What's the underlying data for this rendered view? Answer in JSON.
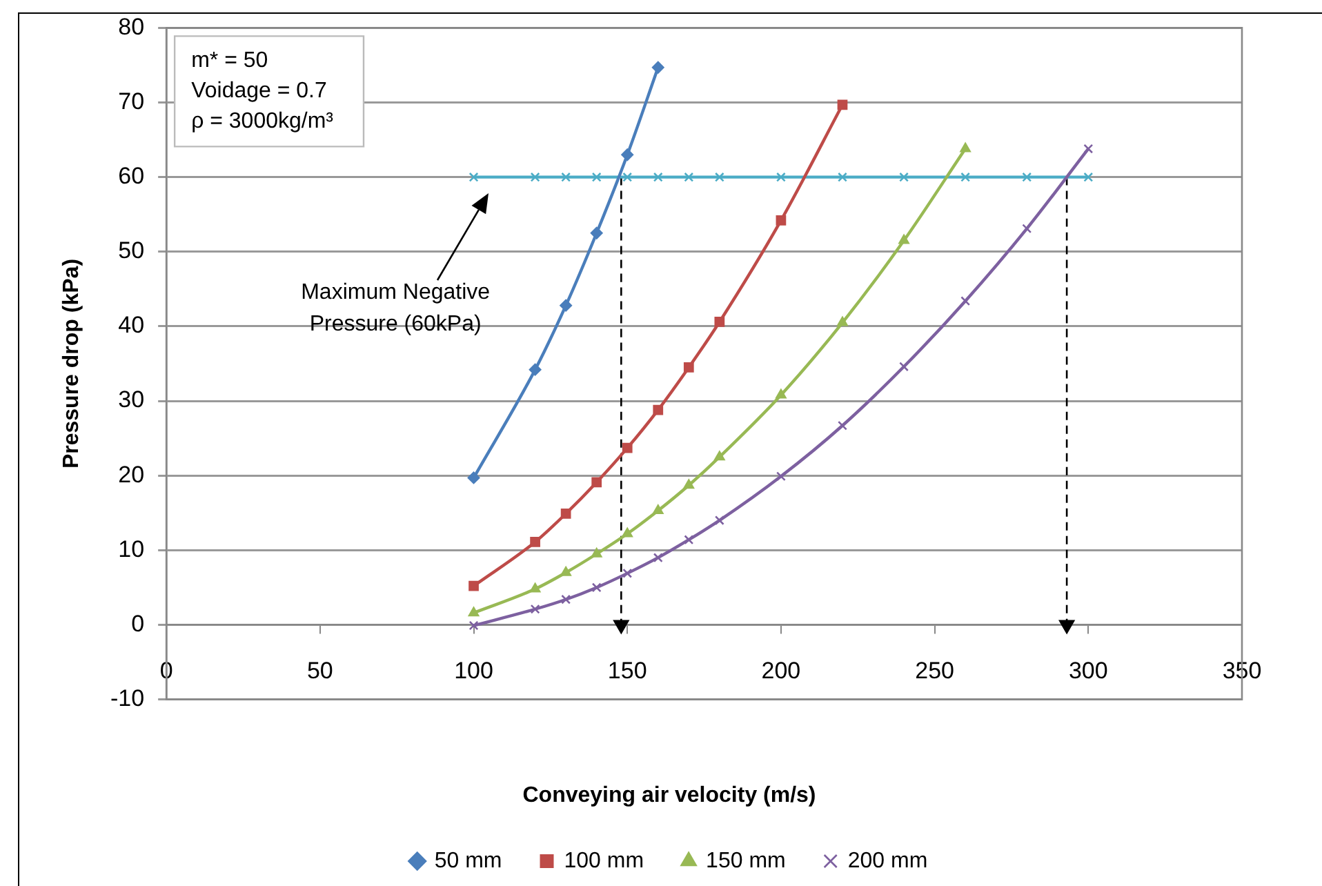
{
  "chart_data": {
    "type": "line",
    "xlabel": "Conveying air velocity (m/s)",
    "ylabel": "Pressure drop (kPa)",
    "xlim": [
      0,
      350
    ],
    "xticks": [
      0,
      50,
      100,
      150,
      200,
      250,
      300,
      350
    ],
    "ylim": [
      -10,
      80
    ],
    "yticks": [
      -10,
      0,
      10,
      20,
      30,
      40,
      50,
      60,
      70,
      80
    ],
    "grid": "y",
    "legend": "bottom",
    "annotations": [
      "m* = 50",
      "Voidage = 0.7",
      "ρ = 3000kg/m³",
      "Maximum Negative\nPressure (60kPa)"
    ],
    "series": [
      {
        "name": "50 mm",
        "color": "#4a7ebb",
        "marker": "diamond",
        "x": [
          100,
          120,
          130,
          140,
          150,
          160
        ],
        "values": [
          19.7,
          34.2,
          42.8,
          52.5,
          63,
          74.7
        ]
      },
      {
        "name": "100 mm",
        "color": "#be4b48",
        "marker": "square",
        "x": [
          100,
          120,
          130,
          140,
          150,
          160,
          170,
          180,
          200,
          220
        ],
        "values": [
          5.2,
          11.1,
          14.9,
          19.1,
          23.7,
          28.8,
          34.5,
          40.6,
          54.2,
          69.7
        ]
      },
      {
        "name": "150 mm",
        "color": "#98b954",
        "marker": "triangle",
        "x": [
          100,
          120,
          130,
          140,
          150,
          160,
          170,
          180,
          200,
          220,
          240,
          260
        ],
        "values": [
          1.6,
          4.8,
          7.0,
          9.5,
          12.2,
          15.3,
          18.7,
          22.5,
          30.8,
          40.5,
          51.5,
          63.8
        ]
      },
      {
        "name": "200 mm",
        "color": "#7d60a0",
        "marker": "cross",
        "x": [
          100,
          120,
          130,
          140,
          150,
          160,
          170,
          180,
          200,
          220,
          240,
          260,
          280,
          300
        ],
        "values": [
          -0.1,
          2.1,
          3.4,
          5.0,
          6.9,
          9.0,
          11.4,
          14.0,
          19.9,
          26.7,
          34.6,
          43.4,
          53.1,
          63.8
        ]
      },
      {
        "color": "#4bacc6",
        "marker": "cross",
        "x": [
          100,
          120,
          130,
          140,
          150,
          160,
          170,
          180,
          200,
          220,
          240,
          260,
          280,
          300
        ],
        "values": [
          60,
          60,
          60,
          60,
          60,
          60,
          60,
          60,
          60,
          60,
          60,
          60,
          60,
          60
        ]
      },
      {
        "color": "#000000",
        "marker": "triangle",
        "line_style": "dashed",
        "x": [
          148,
          148
        ],
        "values": [
          60,
          0
        ]
      },
      {
        "color": "#000000",
        "marker": "triangle",
        "line_style": "dashed",
        "x": [
          293,
          293
        ],
        "values": [
          60,
          0
        ]
      }
    ]
  }
}
